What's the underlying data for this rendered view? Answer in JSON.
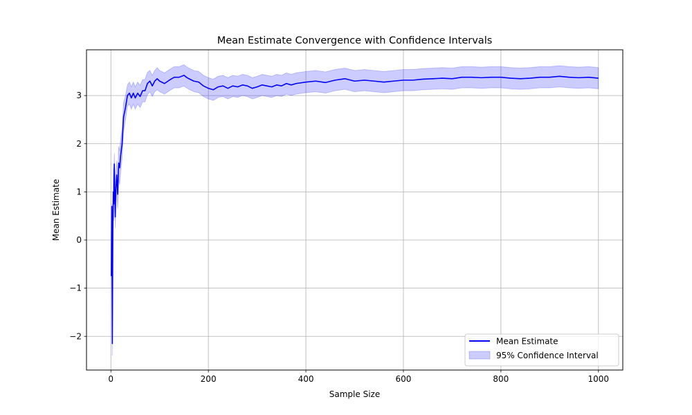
{
  "chart_data": {
    "type": "line",
    "title": "Mean Estimate Convergence with Confidence Intervals",
    "xlabel": "Sample Size",
    "ylabel": "Mean Estimate",
    "xlim": [
      -50,
      1050
    ],
    "ylim": [
      -2.7,
      3.95
    ],
    "xticks": [
      0,
      200,
      400,
      600,
      800,
      1000
    ],
    "yticks": [
      -2,
      -1,
      0,
      1,
      2,
      3
    ],
    "grid": true,
    "legend_position": "bottom-right",
    "series": [
      {
        "name": "Mean Estimate",
        "kind": "line",
        "color": "#0000ff",
        "x": [
          1,
          2,
          3,
          4,
          5,
          6,
          7,
          8,
          9,
          10,
          12,
          14,
          16,
          18,
          20,
          23,
          26,
          30,
          34,
          38,
          42,
          46,
          50,
          55,
          60,
          65,
          70,
          75,
          80,
          85,
          90,
          95,
          100,
          110,
          120,
          130,
          140,
          150,
          155,
          160,
          170,
          180,
          190,
          200,
          210,
          220,
          230,
          240,
          250,
          260,
          270,
          280,
          290,
          300,
          310,
          320,
          330,
          340,
          350,
          360,
          370,
          380,
          400,
          420,
          440,
          460,
          480,
          500,
          520,
          540,
          560,
          580,
          600,
          620,
          640,
          660,
          680,
          700,
          720,
          740,
          760,
          780,
          800,
          820,
          840,
          860,
          880,
          900,
          920,
          940,
          960,
          980,
          1000
        ],
        "y": [
          -0.75,
          0.7,
          -2.15,
          0.2,
          1.0,
          0.75,
          1.58,
          1.0,
          0.48,
          1.0,
          1.35,
          0.95,
          1.6,
          1.5,
          1.75,
          2.0,
          2.55,
          2.75,
          3.0,
          3.05,
          2.95,
          3.05,
          2.95,
          3.05,
          2.98,
          3.1,
          3.1,
          3.25,
          3.3,
          3.2,
          3.3,
          3.35,
          3.3,
          3.25,
          3.32,
          3.38,
          3.38,
          3.42,
          3.38,
          3.35,
          3.3,
          3.28,
          3.2,
          3.15,
          3.12,
          3.18,
          3.2,
          3.15,
          3.2,
          3.18,
          3.22,
          3.2,
          3.15,
          3.18,
          3.22,
          3.2,
          3.18,
          3.22,
          3.2,
          3.25,
          3.22,
          3.25,
          3.28,
          3.3,
          3.27,
          3.32,
          3.35,
          3.3,
          3.32,
          3.3,
          3.28,
          3.3,
          3.32,
          3.32,
          3.34,
          3.35,
          3.36,
          3.35,
          3.38,
          3.38,
          3.37,
          3.38,
          3.38,
          3.36,
          3.35,
          3.36,
          3.38,
          3.38,
          3.4,
          3.38,
          3.37,
          3.38,
          3.36
        ]
      },
      {
        "name": "95% Confidence Interval",
        "kind": "band",
        "color": "#0000ff",
        "x": [
          1,
          2,
          3,
          4,
          5,
          6,
          7,
          8,
          9,
          10,
          12,
          14,
          16,
          18,
          20,
          23,
          26,
          30,
          34,
          38,
          42,
          46,
          50,
          55,
          60,
          65,
          70,
          75,
          80,
          85,
          90,
          95,
          100,
          110,
          120,
          130,
          140,
          150,
          155,
          160,
          170,
          180,
          190,
          200,
          210,
          220,
          230,
          240,
          250,
          260,
          270,
          280,
          290,
          300,
          310,
          320,
          330,
          340,
          350,
          360,
          370,
          380,
          400,
          420,
          440,
          460,
          480,
          500,
          520,
          540,
          560,
          580,
          600,
          620,
          640,
          660,
          680,
          700,
          720,
          740,
          760,
          780,
          800,
          820,
          840,
          860,
          880,
          900,
          920,
          940,
          960,
          980,
          1000
        ],
        "lower": [
          -0.75,
          0.65,
          -2.4,
          -0.2,
          0.5,
          0.4,
          1.2,
          0.6,
          0.25,
          0.7,
          1.05,
          0.65,
          1.25,
          1.15,
          1.4,
          1.7,
          2.25,
          2.5,
          2.78,
          2.82,
          2.72,
          2.82,
          2.72,
          2.82,
          2.75,
          2.87,
          2.87,
          3.02,
          3.08,
          2.98,
          3.08,
          3.12,
          3.08,
          3.03,
          3.1,
          3.16,
          3.16,
          3.2,
          3.16,
          3.13,
          3.08,
          3.06,
          2.98,
          2.93,
          2.9,
          2.96,
          2.98,
          2.93,
          2.98,
          2.96,
          3.0,
          2.98,
          2.93,
          2.96,
          3.0,
          2.98,
          2.96,
          3.0,
          2.98,
          3.03,
          3.0,
          3.03,
          3.06,
          3.08,
          3.05,
          3.1,
          3.13,
          3.08,
          3.1,
          3.08,
          3.06,
          3.08,
          3.1,
          3.1,
          3.12,
          3.13,
          3.14,
          3.13,
          3.16,
          3.16,
          3.15,
          3.16,
          3.16,
          3.14,
          3.13,
          3.14,
          3.16,
          3.16,
          3.18,
          3.16,
          3.15,
          3.16,
          3.14
        ],
        "upper": [
          -0.75,
          0.75,
          -1.9,
          0.6,
          1.5,
          1.1,
          1.8,
          1.4,
          0.75,
          1.35,
          1.65,
          1.25,
          1.95,
          1.85,
          2.1,
          2.3,
          2.85,
          3.0,
          3.22,
          3.28,
          3.18,
          3.28,
          3.18,
          3.28,
          3.21,
          3.33,
          3.33,
          3.48,
          3.52,
          3.42,
          3.52,
          3.58,
          3.52,
          3.47,
          3.54,
          3.6,
          3.6,
          3.64,
          3.6,
          3.57,
          3.52,
          3.5,
          3.42,
          3.37,
          3.34,
          3.4,
          3.42,
          3.37,
          3.42,
          3.4,
          3.44,
          3.42,
          3.37,
          3.4,
          3.44,
          3.42,
          3.4,
          3.44,
          3.42,
          3.47,
          3.44,
          3.47,
          3.5,
          3.52,
          3.49,
          3.54,
          3.57,
          3.52,
          3.54,
          3.52,
          3.5,
          3.52,
          3.54,
          3.54,
          3.56,
          3.57,
          3.58,
          3.57,
          3.6,
          3.6,
          3.59,
          3.6,
          3.6,
          3.58,
          3.57,
          3.58,
          3.6,
          3.6,
          3.62,
          3.6,
          3.59,
          3.6,
          3.58
        ]
      }
    ]
  }
}
